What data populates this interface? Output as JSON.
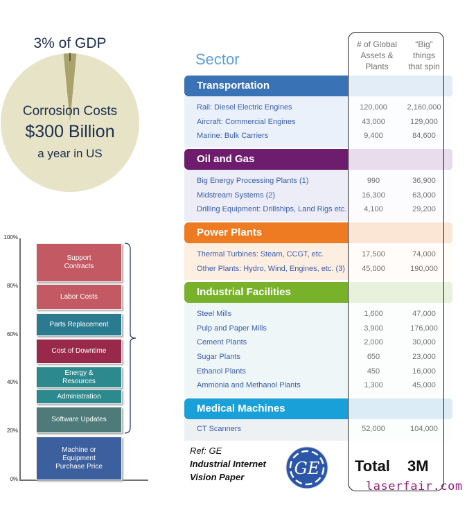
{
  "chart_data": [
    {
      "type": "pie",
      "title": "Corrosion Costs",
      "slices": [
        {
          "label": "3% of GDP",
          "value": 3,
          "color": "#a9a26c"
        },
        {
          "label": "Rest of GDP",
          "value": 97,
          "color": "#e7e3c6"
        }
      ],
      "annotations": {
        "slice_label": "3% of GDP",
        "title": "Corrosion Costs",
        "amount": "$300 Billion",
        "subtitle": "a year in US"
      }
    },
    {
      "type": "bar",
      "stacked": true,
      "ylim": [
        0,
        100
      ],
      "yticks": [
        "0%",
        "20%",
        "40%",
        "60%",
        "80%",
        "100%"
      ],
      "ytick_values": [
        0,
        20,
        40,
        60,
        80,
        100
      ],
      "xlabel": "",
      "ylabel": "",
      "grid": false,
      "segments": [
        {
          "label": "Machine or Equipment Purchase Price",
          "lines": [
            "Machine or",
            "Equipment",
            "Purchase Price"
          ],
          "start": 0,
          "end": 18,
          "color": "#3c5f9e"
        },
        {
          "label": "Software Updates",
          "lines": [
            "Software Updates"
          ],
          "start": 19.5,
          "end": 30.5,
          "color": "#4e7a7a"
        },
        {
          "label": "Administration",
          "lines": [
            "Administration"
          ],
          "start": 31.5,
          "end": 37.5,
          "color": "#2c8a8e"
        },
        {
          "label": "Energy & Resources",
          "lines": [
            "Energy &",
            "Resources"
          ],
          "start": 38,
          "end": 47,
          "color": "#2c8a8e"
        },
        {
          "label": "Cost of Downtime",
          "lines": [
            "Cost of Downtime"
          ],
          "start": 48,
          "end": 58.5,
          "color": "#98294a"
        },
        {
          "label": "Parts Replacement",
          "lines": [
            "Parts Replacement"
          ],
          "start": 59.5,
          "end": 69,
          "color": "#2a7b8f"
        },
        {
          "label": "Labor Costs",
          "lines": [
            "Labor Costs"
          ],
          "start": 70.5,
          "end": 81,
          "color": "#c35a63"
        },
        {
          "label": "Support Contracts",
          "lines": [
            "Support",
            "Contracts"
          ],
          "start": 82,
          "end": 98,
          "color": "#c35a63"
        }
      ],
      "brace_range": [
        19.5,
        98
      ]
    },
    {
      "type": "table",
      "title": "Sector",
      "columns": [
        "Sector",
        "# of Global Assets & Plants",
        "\"Big\" things that spin"
      ],
      "column_header_lines": {
        "assets": [
          "# of Global",
          "Assets &",
          "Plants"
        ],
        "spin": [
          "“Big”",
          "things",
          "that spin"
        ]
      },
      "sections": [
        {
          "name": "Transportation",
          "color": "#3a73b5",
          "tint": "#e3edf8",
          "body": "#eaf1fa",
          "rows": [
            {
              "label": "Rail: Diesel Electric Engines",
              "assets": "120,000",
              "spin": "2,160,000"
            },
            {
              "label": "Aircraft: Commercial Engines",
              "assets": "43,000",
              "spin": "129,000"
            },
            {
              "label": "Marine: Bulk Carriers",
              "assets": "9,400",
              "spin": "84,600"
            }
          ]
        },
        {
          "name": "Oil and Gas",
          "color": "#6e1d6e",
          "tint": "#e8dced",
          "body": "#ecedf7",
          "rows": [
            {
              "label": "Big Energy Processing Plants (1)",
              "assets": "990",
              "spin": "36,900"
            },
            {
              "label": "Midstream Systems (2)",
              "assets": "16,300",
              "spin": "63,000"
            },
            {
              "label": "Drilling Equipment: Drillships, Land Rigs etc.",
              "assets": "4,100",
              "spin": "29,200"
            }
          ]
        },
        {
          "name": "Power Plants",
          "color": "#ee7a22",
          "tint": "#fbe6d6",
          "body": "#fdeee2",
          "rows": [
            {
              "label": "Thermal Turbines: Steam, CCGT, etc.",
              "assets": "17,500",
              "spin": "74,000"
            },
            {
              "label": "Other Plants: Hydro, Wind, Engines, etc. (3)",
              "assets": "45,000",
              "spin": "190,000"
            }
          ]
        },
        {
          "name": "Industrial Facilities",
          "color": "#77b22a",
          "tint": "#e8f1dc",
          "body": "#eef6f8",
          "rows": [
            {
              "label": "Steel Mills",
              "assets": "1,600",
              "spin": "47,000"
            },
            {
              "label": "Pulp and Paper Mills",
              "assets": "3,900",
              "spin": "176,000"
            },
            {
              "label": "Cement Plants",
              "assets": "2,000",
              "spin": "30,000"
            },
            {
              "label": "Sugar Plants",
              "assets": "650",
              "spin": "23,000"
            },
            {
              "label": "Ethanol Plants",
              "assets": "450",
              "spin": "16,000"
            },
            {
              "label": "Ammonia and Methanol Plants",
              "assets": "1,300",
              "spin": "45,000"
            }
          ]
        },
        {
          "name": "Medical Machines",
          "color": "#1aa0d8",
          "tint": "#dcecf6",
          "body": "#edf1f3",
          "rows": [
            {
              "label": "CT Scanners",
              "assets": "52,000",
              "spin": "104,000"
            }
          ]
        }
      ],
      "total": {
        "label": "Total",
        "value": "3M"
      }
    }
  ],
  "reference": {
    "line1": "Ref: GE",
    "line2": "Industrial Internet",
    "line3": "Vision Paper",
    "logo": "ge-logo-icon",
    "logo_color": "#2c56a8"
  },
  "watermark": "laserfair.com"
}
